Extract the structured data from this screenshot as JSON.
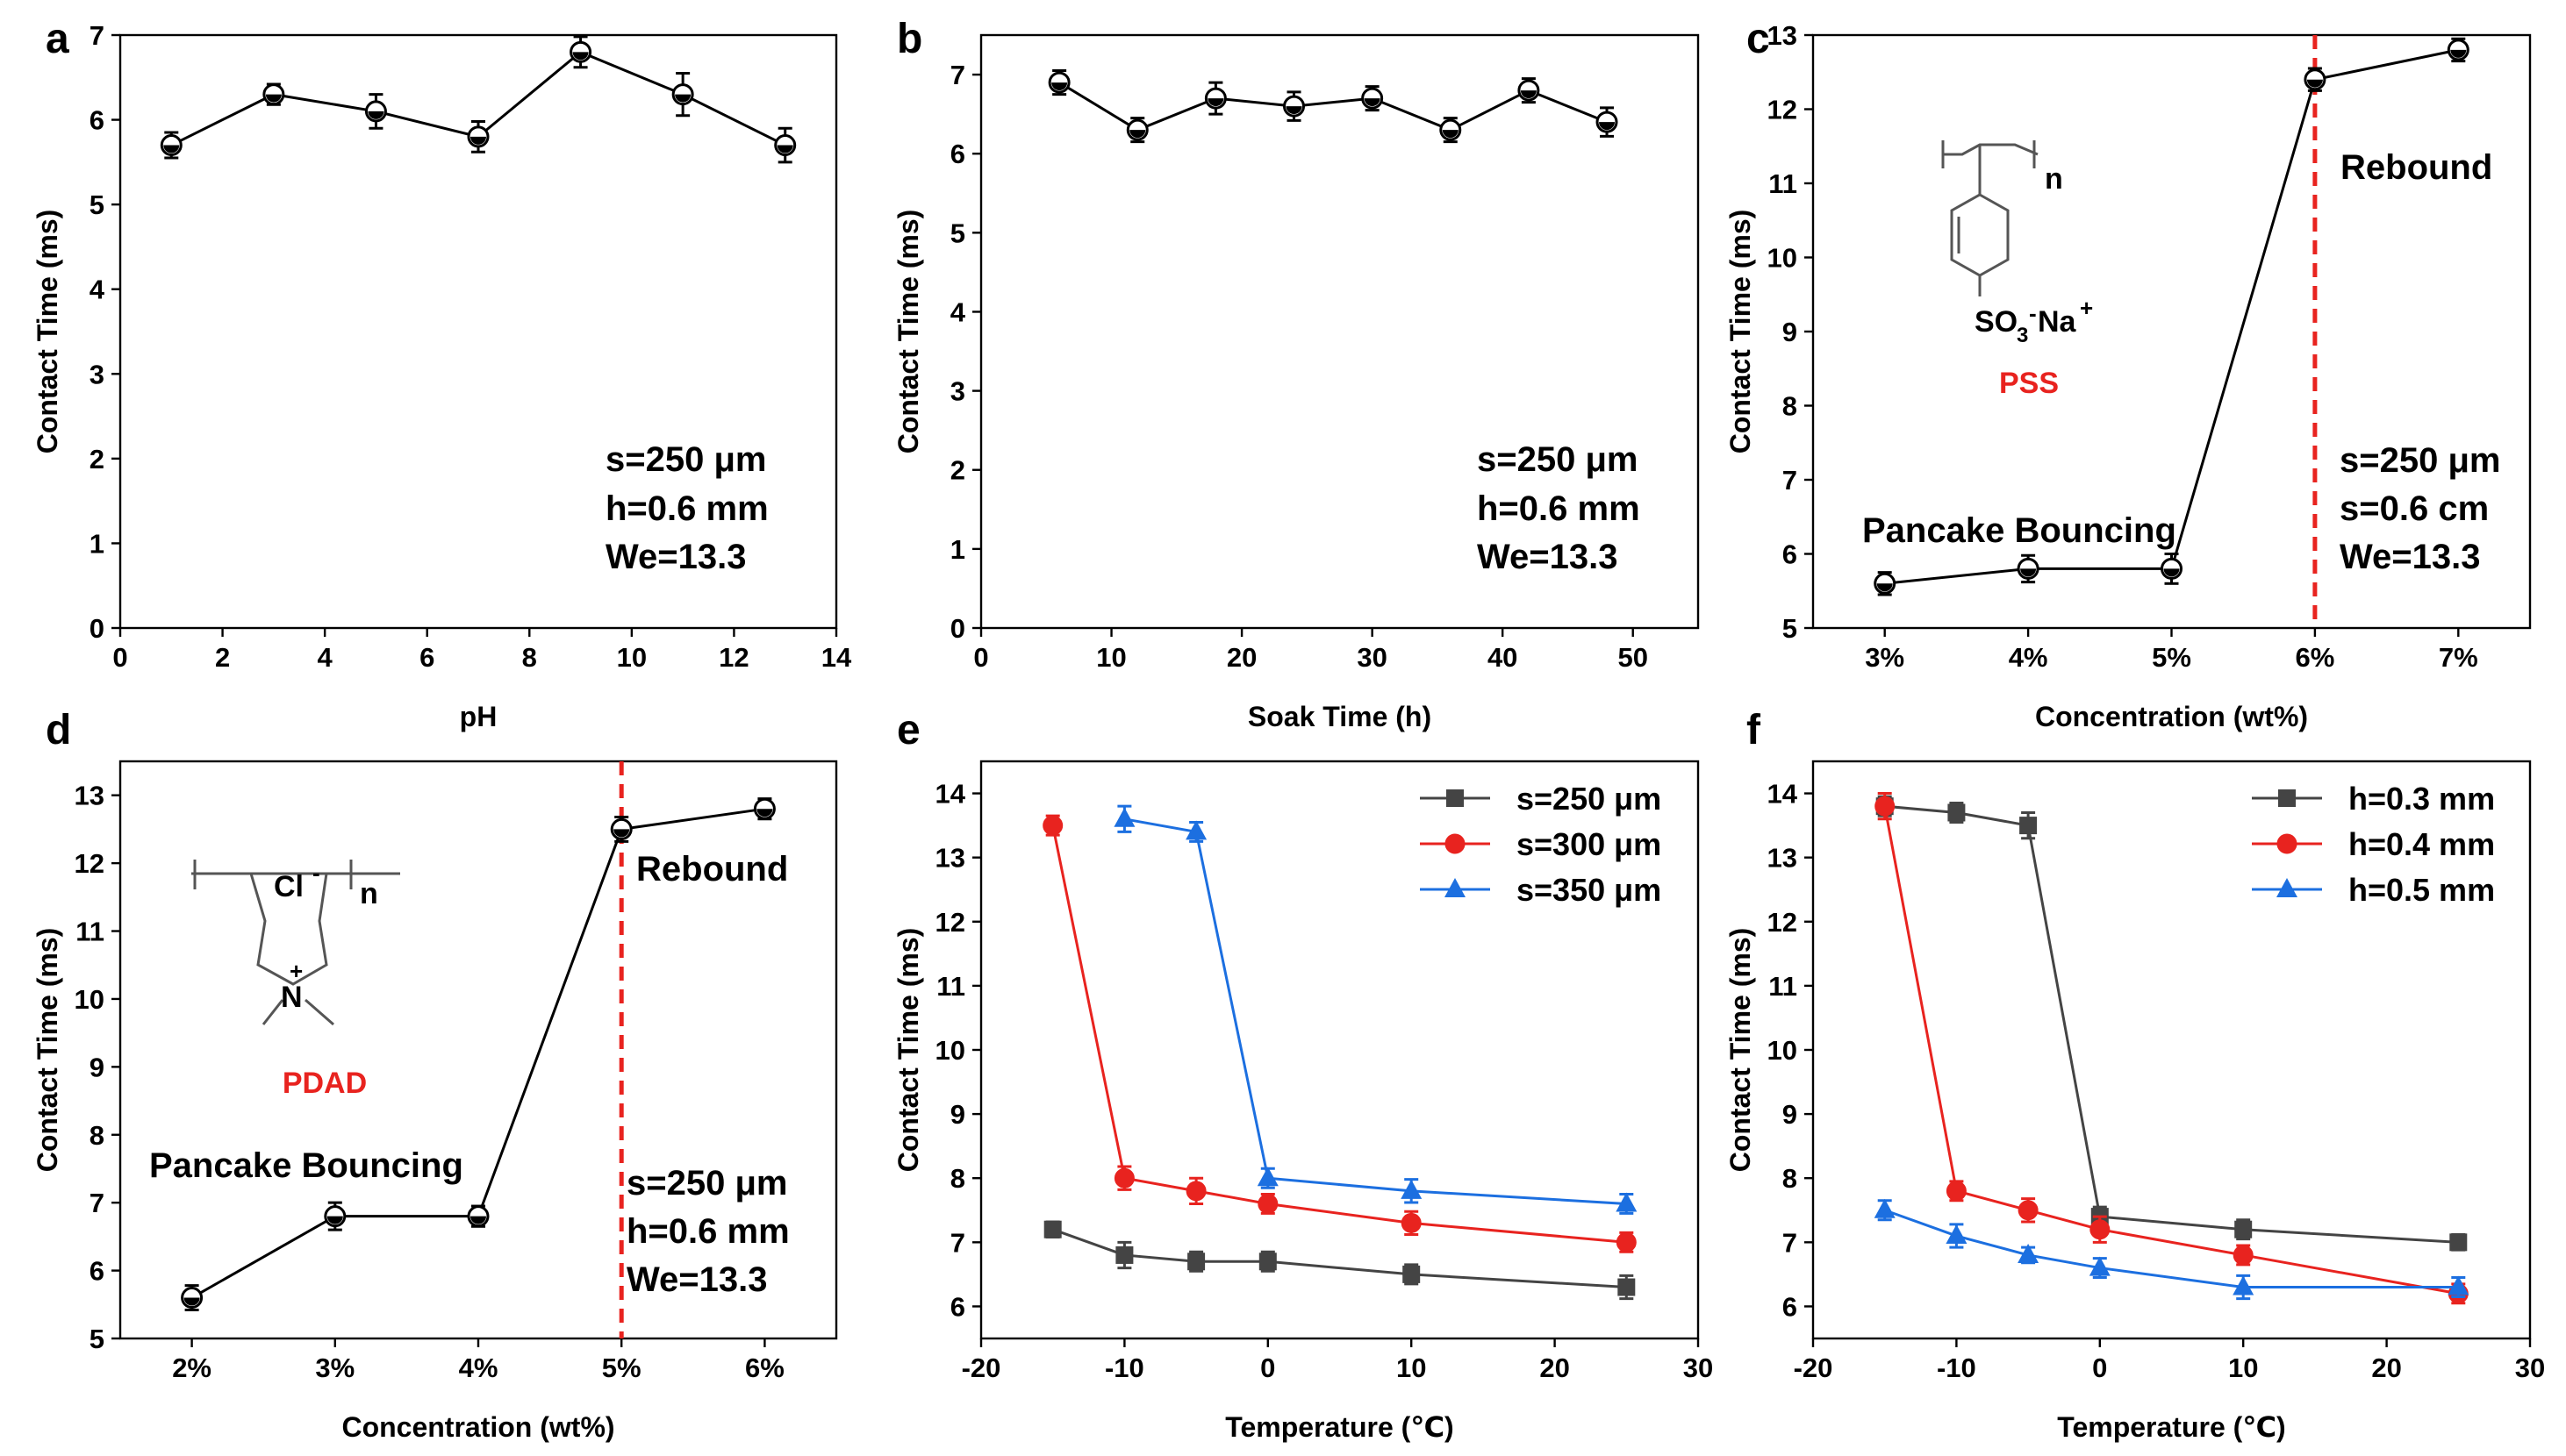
{
  "chart_data": [
    {
      "panel": "a",
      "type": "line",
      "title": "",
      "xlabel": "pH",
      "ylabel": "Contact Time (ms)",
      "xlim": [
        0,
        14
      ],
      "ylim": [
        0,
        7
      ],
      "xticks": [
        0,
        2,
        4,
        6,
        8,
        10,
        12,
        14
      ],
      "yticks": [
        0,
        1,
        2,
        3,
        4,
        5,
        6,
        7
      ],
      "series": [
        {
          "name": "",
          "color": "#000000",
          "marker": "circle",
          "x": [
            1,
            3,
            5,
            7,
            9,
            11,
            13
          ],
          "y": [
            5.7,
            6.3,
            6.1,
            5.8,
            6.8,
            6.3,
            5.7
          ],
          "err": [
            0.15,
            0.12,
            0.2,
            0.18,
            0.18,
            0.25,
            0.2
          ]
        }
      ],
      "annotations": [
        "s=250 μm",
        "h=0.6 mm",
        "We=13.3"
      ]
    },
    {
      "panel": "b",
      "type": "line",
      "title": "",
      "xlabel": "Soak Time (h)",
      "ylabel": "Contact Time (ms)",
      "xlim": [
        0,
        55
      ],
      "ylim": [
        0,
        7.5
      ],
      "xticks": [
        0,
        10,
        20,
        30,
        40,
        50
      ],
      "yticks": [
        0,
        1,
        2,
        3,
        4,
        5,
        6,
        7
      ],
      "series": [
        {
          "name": "",
          "color": "#000000",
          "marker": "circle",
          "x": [
            6,
            12,
            18,
            24,
            30,
            36,
            42,
            48
          ],
          "y": [
            6.9,
            6.3,
            6.7,
            6.6,
            6.7,
            6.3,
            6.8,
            6.4
          ],
          "err": [
            0.15,
            0.15,
            0.2,
            0.18,
            0.15,
            0.15,
            0.15,
            0.18
          ]
        }
      ],
      "annotations": [
        "s=250 μm",
        "h=0.6 mm",
        "We=13.3"
      ]
    },
    {
      "panel": "c",
      "type": "line",
      "title": "",
      "xlabel": "Concentration (wt%)",
      "ylabel": "Contact Time (ms)",
      "categories": [
        "3%",
        "4%",
        "5%",
        "6%",
        "7%"
      ],
      "xlim": [
        2.5,
        7.5
      ],
      "ylim": [
        5,
        13
      ],
      "yticks": [
        5,
        6,
        7,
        8,
        9,
        10,
        11,
        12,
        13
      ],
      "series": [
        {
          "name": "",
          "color": "#000000",
          "marker": "circle",
          "x": [
            3,
            4,
            5,
            6,
            7
          ],
          "y": [
            5.6,
            5.8,
            5.8,
            12.4,
            12.8
          ],
          "err": [
            0.15,
            0.18,
            0.2,
            0.15,
            0.15
          ]
        }
      ],
      "threshold_x": 6,
      "annotations": [
        "Pancake Bouncing",
        "Rebound",
        "s=250 μm",
        "s=0.6 cm",
        "We=13.3"
      ],
      "inset_label": "PSS",
      "inset_texts": [
        "n",
        "SO",
        "3",
        "-",
        "Na",
        "+"
      ]
    },
    {
      "panel": "d",
      "type": "line",
      "title": "",
      "xlabel": "Concentration (wt%)",
      "ylabel": "Contact Time (ms)",
      "categories": [
        "2%",
        "3%",
        "4%",
        "5%",
        "6%"
      ],
      "xlim": [
        1.5,
        6.5
      ],
      "ylim": [
        5,
        13.5
      ],
      "yticks": [
        5,
        6,
        7,
        8,
        9,
        10,
        11,
        12,
        13
      ],
      "series": [
        {
          "name": "",
          "color": "#000000",
          "marker": "circle",
          "x": [
            2,
            3,
            4,
            5,
            6
          ],
          "y": [
            5.6,
            6.8,
            6.8,
            12.5,
            12.8
          ],
          "err": [
            0.18,
            0.2,
            0.15,
            0.18,
            0.15
          ]
        }
      ],
      "threshold_x": 5,
      "annotations": [
        "Pancake Bouncing",
        "Rebound",
        "s=250 μm",
        "h=0.6 mm",
        "We=13.3"
      ],
      "inset_label": "PDAD",
      "inset_texts": [
        "Cl",
        "-",
        "n",
        "N",
        "+"
      ]
    },
    {
      "panel": "e",
      "type": "line",
      "title": "",
      "xlabel": "Temperature (℃)",
      "ylabel": "Contact Time (ms)",
      "xlim": [
        -20,
        30
      ],
      "ylim": [
        5.5,
        14.5
      ],
      "xticks": [
        -20,
        -10,
        0,
        10,
        20,
        30
      ],
      "yticks": [
        6,
        7,
        8,
        9,
        10,
        11,
        12,
        13,
        14
      ],
      "series": [
        {
          "name": "s=250 μm",
          "color": "#444444",
          "marker": "square",
          "x": [
            -15,
            -10,
            -5,
            0,
            10,
            25
          ],
          "y": [
            7.2,
            6.8,
            6.7,
            6.7,
            6.5,
            6.3
          ],
          "err": [
            0.12,
            0.2,
            0.15,
            0.15,
            0.15,
            0.18
          ]
        },
        {
          "name": "s=300 μm",
          "color": "#e8231f",
          "marker": "circle",
          "x": [
            -15,
            -10,
            -5,
            0,
            10,
            25
          ],
          "y": [
            13.5,
            8.0,
            7.8,
            7.6,
            7.3,
            7.0
          ],
          "err": [
            0.15,
            0.18,
            0.2,
            0.15,
            0.18,
            0.15
          ]
        },
        {
          "name": "s=350 μm",
          "color": "#1c6fe0",
          "marker": "triangle",
          "x": [
            -10,
            -5,
            0,
            10,
            25
          ],
          "y": [
            13.6,
            13.4,
            8.0,
            7.8,
            7.6
          ],
          "err": [
            0.2,
            0.15,
            0.15,
            0.18,
            0.15
          ]
        }
      ]
    },
    {
      "panel": "f",
      "type": "line",
      "title": "",
      "xlabel": "Temperature (℃)",
      "ylabel": "Contact Time (ms)",
      "xlim": [
        -20,
        30
      ],
      "ylim": [
        5.5,
        14.5
      ],
      "xticks": [
        -20,
        -10,
        0,
        10,
        20,
        30
      ],
      "yticks": [
        6,
        7,
        8,
        9,
        10,
        11,
        12,
        13,
        14
      ],
      "series": [
        {
          "name": "h=0.3 mm",
          "color": "#444444",
          "marker": "square",
          "x": [
            -15,
            -10,
            -5,
            0,
            10,
            25
          ],
          "y": [
            13.8,
            13.7,
            13.5,
            7.4,
            7.2,
            7.0
          ],
          "err": [
            0.15,
            0.15,
            0.2,
            0.15,
            0.15,
            0.12
          ]
        },
        {
          "name": "h=0.4 mm",
          "color": "#e8231f",
          "marker": "circle",
          "x": [
            -15,
            -10,
            -5,
            0,
            10,
            25
          ],
          "y": [
            13.8,
            7.8,
            7.5,
            7.2,
            6.8,
            6.2
          ],
          "err": [
            0.2,
            0.15,
            0.18,
            0.2,
            0.15,
            0.15
          ]
        },
        {
          "name": "h=0.5 mm",
          "color": "#1c6fe0",
          "marker": "triangle",
          "x": [
            -15,
            -10,
            -5,
            0,
            10,
            25
          ],
          "y": [
            7.5,
            7.1,
            6.8,
            6.6,
            6.3,
            6.3
          ],
          "err": [
            0.15,
            0.18,
            0.12,
            0.15,
            0.18,
            0.15
          ]
        }
      ]
    }
  ]
}
